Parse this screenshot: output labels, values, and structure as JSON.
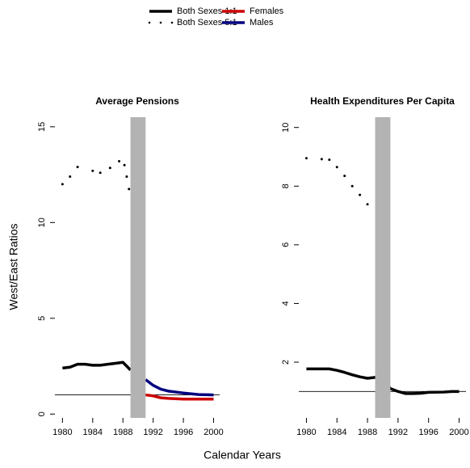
{
  "axis_labels": {
    "xlabel": "Calendar Years",
    "ylabel": "West/East Ratios"
  },
  "chart_data": [
    {
      "type": "line",
      "title": "Average Pensions",
      "xlim": [
        1979,
        2000.8
      ],
      "ylim": [
        -0.2,
        15.5
      ],
      "xticks": [
        1980,
        1984,
        1988,
        1992,
        1996,
        2000
      ],
      "yticks": [
        0,
        5,
        10,
        15
      ],
      "shade": [
        1989,
        1991
      ],
      "shade_color": "#b3b3b3",
      "hline": 1,
      "series": [
        {
          "name": "Both Sexes 1:1",
          "color": "#000000",
          "style": "solid",
          "x": [
            1980,
            1981,
            1982,
            1983,
            1984,
            1985,
            1986,
            1987,
            1988,
            1989
          ],
          "values": [
            2.4,
            2.45,
            2.6,
            2.6,
            2.55,
            2.55,
            2.6,
            2.65,
            2.7,
            2.3
          ]
        },
        {
          "name": "Both Sexes 5:1",
          "color": "#000000",
          "style": "dotted",
          "x": [
            1980,
            1981,
            1982,
            1984,
            1985,
            1986.3,
            1987.5,
            1988.2,
            1988.5,
            1988.8
          ],
          "values": [
            12.0,
            12.4,
            12.9,
            12.7,
            12.6,
            12.85,
            13.2,
            13.0,
            12.4,
            11.75
          ]
        },
        {
          "name": "Females",
          "color": "#cc0000",
          "style": "solid",
          "x": [
            1991,
            1992,
            1993,
            1994,
            1996,
            1998,
            2000
          ],
          "values": [
            1.0,
            0.95,
            0.85,
            0.82,
            0.78,
            0.78,
            0.78
          ]
        },
        {
          "name": "Males",
          "color": "#000080",
          "style": "solid",
          "x": [
            1991,
            1992,
            1993,
            1994,
            1996,
            1998,
            2000
          ],
          "values": [
            1.8,
            1.5,
            1.3,
            1.2,
            1.1,
            1.02,
            1.0
          ]
        }
      ]
    },
    {
      "type": "line",
      "title": "Health Expenditures Per Capita",
      "xlim": [
        1979,
        2000.9
      ],
      "ylim": [
        0.1,
        10.35
      ],
      "xticks": [
        1980,
        1984,
        1988,
        1992,
        1996,
        2000
      ],
      "yticks": [
        2,
        4,
        6,
        8,
        10
      ],
      "shade": [
        1989,
        1991
      ],
      "shade_color": "#b3b3b3",
      "hline": 1,
      "series": [
        {
          "name": "Both Sexes 1:1",
          "color": "#000000",
          "style": "solid",
          "x": [
            1980,
            1982,
            1983,
            1984,
            1985,
            1986,
            1987,
            1988,
            1989,
            1990,
            1991,
            1992,
            1993,
            1994,
            1995,
            1996,
            1998,
            1999,
            2000
          ],
          "values": [
            1.77,
            1.77,
            1.77,
            1.72,
            1.65,
            1.57,
            1.5,
            1.45,
            1.48,
            1.42,
            1.1,
            1.0,
            0.93,
            0.93,
            0.94,
            0.97,
            0.98,
            1.0,
            1.0
          ]
        },
        {
          "name": "Both Sexes 5:1",
          "color": "#000000",
          "style": "dotted",
          "x": [
            1980,
            1982,
            1983,
            1984,
            1985,
            1986,
            1987,
            1988
          ],
          "values": [
            8.95,
            8.92,
            8.9,
            8.65,
            8.35,
            8.0,
            7.7,
            7.38
          ]
        }
      ]
    }
  ]
}
